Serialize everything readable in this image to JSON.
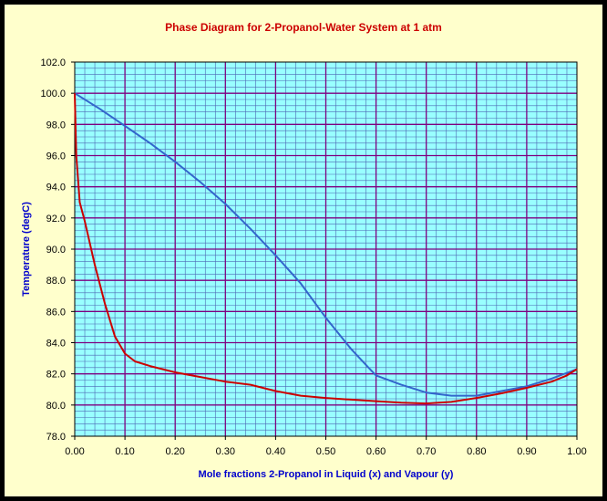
{
  "chart_data": {
    "type": "line",
    "title": "Phase Diagram for 2-Propanol-Water System at 1 atm",
    "xlabel": "Mole fractions 2-Propanol in Liquid (x) and Vapour (y)",
    "ylabel": "Temperature (degC)",
    "xlim": [
      0.0,
      1.0
    ],
    "ylim": [
      78.0,
      102.0
    ],
    "x_ticks": [
      "0.00",
      "0.10",
      "0.20",
      "0.30",
      "0.40",
      "0.50",
      "0.60",
      "0.70",
      "0.80",
      "0.90",
      "1.00"
    ],
    "y_ticks": [
      "78.0",
      "80.0",
      "82.0",
      "84.0",
      "86.0",
      "88.0",
      "90.0",
      "92.0",
      "94.0",
      "96.0",
      "98.0",
      "100.0",
      "102.0"
    ],
    "grid": true,
    "plot_background": "#99FFFF",
    "series": [
      {
        "color": "#3366CC",
        "points": [
          [
            0.0,
            100.0
          ],
          [
            0.05,
            99.0
          ],
          [
            0.1,
            97.9
          ],
          [
            0.15,
            96.8
          ],
          [
            0.2,
            95.6
          ],
          [
            0.25,
            94.3
          ],
          [
            0.3,
            92.9
          ],
          [
            0.35,
            91.3
          ],
          [
            0.4,
            89.6
          ],
          [
            0.45,
            87.8
          ],
          [
            0.5,
            85.6
          ],
          [
            0.55,
            83.6
          ],
          [
            0.585,
            82.4
          ],
          [
            0.6,
            81.9
          ],
          [
            0.65,
            81.3
          ],
          [
            0.7,
            80.8
          ],
          [
            0.75,
            80.6
          ],
          [
            0.8,
            80.6
          ],
          [
            0.85,
            80.9
          ],
          [
            0.9,
            81.2
          ],
          [
            0.95,
            81.7
          ],
          [
            1.0,
            82.3
          ]
        ]
      },
      {
        "color": "#CC0000",
        "points": [
          [
            0.0,
            100.0
          ],
          [
            0.003,
            96.0
          ],
          [
            0.01,
            93.0
          ],
          [
            0.02,
            91.8
          ],
          [
            0.04,
            89.0
          ],
          [
            0.06,
            86.5
          ],
          [
            0.08,
            84.4
          ],
          [
            0.1,
            83.3
          ],
          [
            0.12,
            82.8
          ],
          [
            0.15,
            82.5
          ],
          [
            0.2,
            82.1
          ],
          [
            0.25,
            81.8
          ],
          [
            0.3,
            81.5
          ],
          [
            0.35,
            81.3
          ],
          [
            0.4,
            80.9
          ],
          [
            0.45,
            80.6
          ],
          [
            0.5,
            80.45
          ],
          [
            0.55,
            80.35
          ],
          [
            0.6,
            80.25
          ],
          [
            0.65,
            80.15
          ],
          [
            0.7,
            80.1
          ],
          [
            0.75,
            80.2
          ],
          [
            0.8,
            80.45
          ],
          [
            0.85,
            80.75
          ],
          [
            0.9,
            81.1
          ],
          [
            0.95,
            81.5
          ],
          [
            0.98,
            81.9
          ],
          [
            1.0,
            82.3
          ]
        ]
      }
    ]
  }
}
